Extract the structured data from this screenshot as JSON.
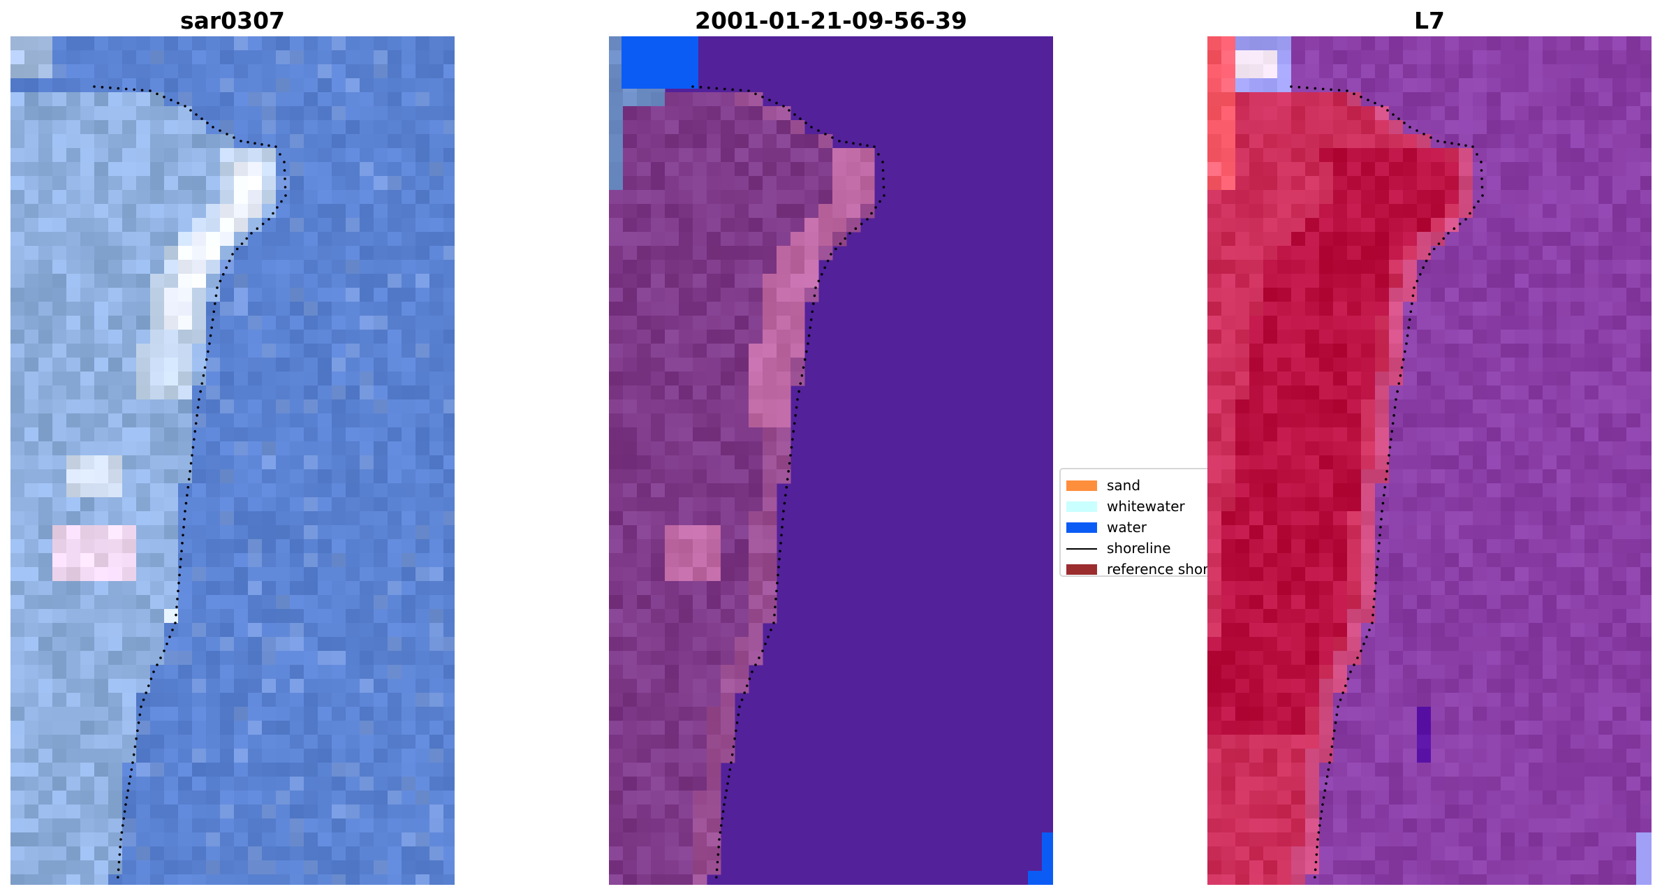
{
  "panels": [
    {
      "title": "sar0307",
      "palette": {
        "base": "#5a82d2",
        "land": "#8fb0de",
        "bright": "#eef2ff",
        "pink": "#f0d8f2",
        "upper_left": "#a8c0e4"
      }
    },
    {
      "title": "2001-01-21-09-56-39",
      "palette": {
        "water_class": "#53219a",
        "land": "#7e3a88",
        "land_light": "#9a4e92",
        "bright": "#c06aa6",
        "upper_left_light": "#6f8fc8",
        "water_blue": "#0b5cf5"
      }
    },
    {
      "title": "L7",
      "palette": {
        "water": "#8a3ea6",
        "land": "#cc2e5a",
        "land_deep": "#ba1041",
        "edge": "#d24d82",
        "corner_pink": "#ff6070",
        "corner_lav": "#a0a0f6",
        "corner_white": "#f4e6f4",
        "dark_spot": "#5a12a6"
      }
    }
  ],
  "legend": {
    "items": [
      {
        "label": "sand",
        "kind": "patch",
        "color": "#fd8e3c"
      },
      {
        "label": "whitewater",
        "kind": "patch",
        "color": "#c9ffff"
      },
      {
        "label": "water",
        "kind": "patch",
        "color": "#0b5cf5"
      },
      {
        "label": "shoreline",
        "kind": "line",
        "color": "#000000"
      },
      {
        "label": "reference shoreline",
        "kind": "patch",
        "color": "#9b2d2f"
      }
    ]
  }
}
